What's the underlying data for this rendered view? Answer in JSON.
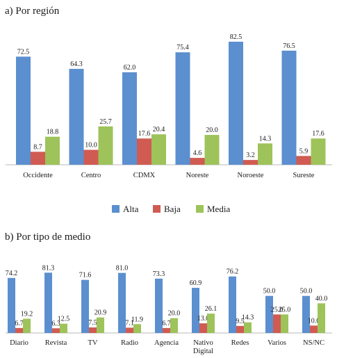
{
  "colors": {
    "alta": "#5b8fcf",
    "baja": "#d05b52",
    "media": "#9dc35a",
    "axis": "#b8b8b8"
  },
  "legend": [
    {
      "key": "alta",
      "label": "Alta"
    },
    {
      "key": "baja",
      "label": "Baja"
    },
    {
      "key": "media",
      "label": "Media"
    }
  ],
  "chart_data": [
    {
      "type": "bar",
      "title": "a) Por región",
      "categories": [
        "Occidente",
        "Centro",
        "CDMX",
        "Noreste",
        "Noroeste",
        "Sureste"
      ],
      "series": [
        {
          "name": "Alta",
          "values": [
            72.5,
            64.3,
            62.0,
            75.4,
            82.5,
            76.5
          ]
        },
        {
          "name": "Baja",
          "values": [
            8.7,
            10.0,
            17.6,
            4.6,
            3.2,
            5.9
          ]
        },
        {
          "name": "Media",
          "values": [
            18.8,
            25.7,
            20.4,
            20.0,
            14.3,
            17.6
          ]
        }
      ],
      "legend_position": "bottom",
      "grid": false
    },
    {
      "type": "bar",
      "title": "b) Por tipo de medio",
      "categories": [
        "Diario",
        "Revista",
        "TV",
        "Radio",
        "Agencia",
        "Nativo Digital",
        "Redes",
        "Varios",
        "NS/NC"
      ],
      "series": [
        {
          "name": "Alta",
          "values": [
            74.2,
            81.3,
            71.6,
            81.0,
            73.3,
            60.9,
            76.2,
            50.0,
            50.0
          ]
        },
        {
          "name": "Baja",
          "values": [
            6.7,
            6.3,
            7.5,
            7.1,
            6.7,
            13.0,
            9.5,
            25.0,
            10.0
          ]
        },
        {
          "name": "Media",
          "values": [
            19.2,
            12.5,
            20.9,
            11.9,
            20.0,
            26.1,
            14.3,
            25.0,
            40.0
          ]
        }
      ],
      "grid": false
    }
  ]
}
